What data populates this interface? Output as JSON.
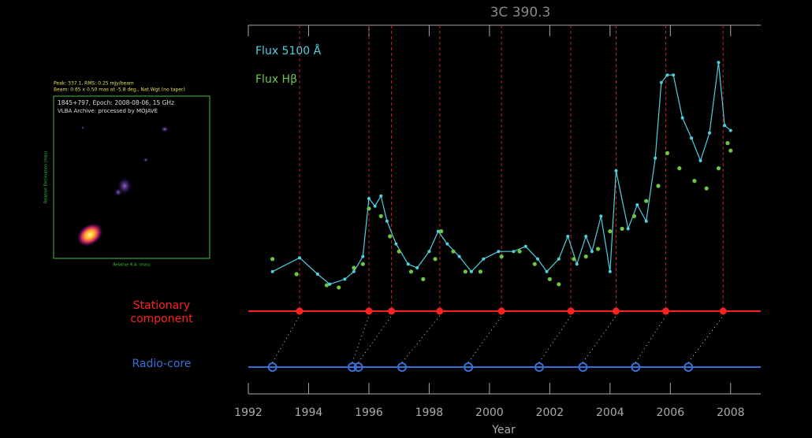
{
  "chart_data": {
    "type": "line",
    "title": "3C 390.3",
    "xlabel": "Year",
    "xlim": [
      1992,
      2009
    ],
    "xticks": [
      1992,
      1994,
      1996,
      1998,
      2000,
      2002,
      2004,
      2006,
      2008
    ],
    "ylim": [
      0,
      100
    ],
    "series": [
      {
        "name": "Flux 5100 Å",
        "color": "#4fd0e0",
        "style": "line",
        "x": [
          1992.8,
          1993.7,
          1994.3,
          1994.7,
          1995.2,
          1995.5,
          1995.8,
          1996.0,
          1996.2,
          1996.4,
          1996.6,
          1996.9,
          1997.3,
          1997.6,
          1998.0,
          1998.3,
          1998.6,
          1999.0,
          1999.4,
          1999.8,
          2000.3,
          2000.8,
          2001.2,
          2001.6,
          2001.9,
          2002.3,
          2002.6,
          2002.9,
          2003.2,
          2003.4,
          2003.7,
          2004.0,
          2004.2,
          2004.6,
          2004.9,
          2005.2,
          2005.5,
          2005.7,
          2005.9,
          2006.1,
          2006.4,
          2006.7,
          2007.0,
          2007.3,
          2007.6,
          2007.8,
          2008.0
        ],
        "values": [
          11,
          16.5,
          10,
          6,
          8,
          11,
          17,
          40,
          37,
          41,
          31,
          22,
          14,
          12.5,
          19,
          27,
          22,
          17,
          11,
          16,
          19,
          19,
          21,
          16,
          11,
          16,
          25,
          14,
          25,
          19,
          33,
          11,
          51,
          28,
          37.5,
          31,
          56,
          86,
          89,
          89,
          72,
          64,
          55,
          66,
          94,
          69,
          67
        ]
      },
      {
        "name": "Flux Hβ",
        "color": "#6cc644",
        "style": "points",
        "x": [
          1992.8,
          1993.6,
          1994.6,
          1995.0,
          1995.5,
          1995.8,
          1996.0,
          1996.4,
          1996.7,
          1997.0,
          1997.4,
          1997.8,
          1998.2,
          1998.4,
          1998.8,
          1999.2,
          1999.7,
          2000.4,
          2001.0,
          2001.5,
          2002.0,
          2002.3,
          2002.8,
          2003.2,
          2003.6,
          2004.0,
          2004.4,
          2004.8,
          2005.2,
          2005.6,
          2005.9,
          2006.3,
          2006.8,
          2007.2,
          2007.6,
          2007.9,
          2008.0
        ],
        "values": [
          16,
          10,
          5.6,
          4.7,
          12.5,
          14,
          36,
          33,
          25,
          19,
          11,
          8,
          16,
          27,
          19,
          11,
          11,
          17,
          19,
          14,
          8,
          6,
          16,
          17,
          20,
          27,
          28,
          33,
          39,
          45,
          58,
          52,
          47,
          44,
          52,
          62,
          59
        ]
      }
    ],
    "stationary": {
      "label": [
        "Stationary",
        "component"
      ],
      "color": "#ff2020",
      "x": [
        1993.7,
        1996.0,
        1996.75,
        1998.35,
        2000.4,
        2002.7,
        2004.2,
        2005.85,
        2007.75
      ]
    },
    "radio_core": {
      "label": "Radio-core",
      "color": "#3a6fd8",
      "x": [
        1992.8,
        1995.45,
        1995.65,
        1997.1,
        1999.3,
        2001.65,
        2003.1,
        2004.85,
        2006.6
      ]
    }
  },
  "inset": {
    "header": [
      "Peak: 337.1, RMS: 0.25 mJy/beam",
      "Beam: 0.65 x 0.50 mas at -5.8 deg., Nat.Wgt.(no taper)"
    ],
    "caption": [
      "1845+797, Epoch: 2008-08-06, 15 GHz",
      "VLBA Archive: processed by MOJAVE"
    ],
    "ylabel": "Relative Declination (mas)",
    "xlabel": "Relative R.A. (mas)"
  }
}
